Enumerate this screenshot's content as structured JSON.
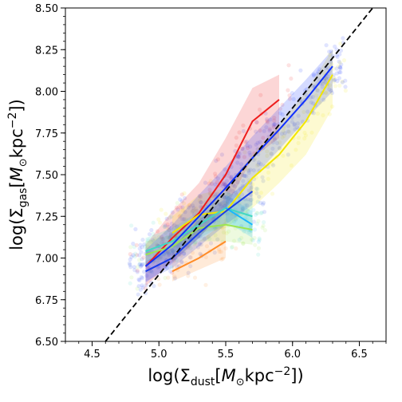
{
  "chart_data": {
    "type": "scatter",
    "title": "",
    "xlabel": {
      "pre": "log(Σ",
      "sub": "dust",
      "mid": "[",
      "unit": "M",
      "unit_sub": "⊙",
      "unit_rest": "kpc",
      "sup": "−2",
      "post": "])"
    },
    "ylabel": {
      "pre": "log(Σ",
      "sub": "gas",
      "mid": "[",
      "unit": "M",
      "unit_sub": "⊙",
      "unit_rest": "kpc",
      "sup": "−2",
      "post": "])"
    },
    "xlim": [
      4.3,
      6.7
    ],
    "ylim": [
      6.5,
      8.5
    ],
    "xticks": [
      4.5,
      5.0,
      5.5,
      6.0,
      6.5
    ],
    "xtick_labels": [
      "4.5",
      "5.0",
      "5.5",
      "6.0",
      "6.5"
    ],
    "yticks": [
      6.5,
      6.75,
      7.0,
      7.25,
      7.5,
      7.75,
      8.0,
      8.25,
      8.5
    ],
    "ytick_labels": [
      "6.50",
      "6.75",
      "7.00",
      "7.25",
      "7.50",
      "7.75",
      "8.00",
      "8.25",
      "8.50"
    ],
    "grid": false,
    "legend": "none",
    "reference_line": {
      "style": "dashed",
      "color": "#000000",
      "x": [
        4.6,
        6.7
      ],
      "y": [
        6.5,
        8.6
      ]
    },
    "series": [
      {
        "color": "#ee1c1c",
        "x": [
          4.9,
          5.1,
          5.3,
          5.5,
          5.7,
          5.9
        ],
        "y": [
          6.95,
          7.12,
          7.27,
          7.5,
          7.82,
          7.95
        ],
        "band_lo": [
          6.83,
          6.98,
          7.12,
          7.3,
          7.6,
          7.72
        ],
        "band_hi": [
          7.08,
          7.28,
          7.45,
          7.72,
          8.02,
          8.1
        ]
      },
      {
        "color": "#ff8c28",
        "x": [
          5.1,
          5.3,
          5.5
        ],
        "y": [
          6.92,
          7.0,
          7.1
        ],
        "band_lo": [
          6.86,
          6.93,
          7.0
        ],
        "band_hi": [
          7.0,
          7.1,
          7.22
        ]
      },
      {
        "color": "#f2e600",
        "x": [
          5.1,
          5.3,
          5.5,
          5.7,
          5.9,
          6.1,
          6.3
        ],
        "y": [
          7.15,
          7.26,
          7.28,
          7.48,
          7.62,
          7.82,
          8.1
        ],
        "band_lo": [
          7.05,
          7.15,
          7.18,
          7.3,
          7.45,
          7.62,
          7.9
        ],
        "band_hi": [
          7.25,
          7.38,
          7.42,
          7.62,
          7.8,
          8.0,
          8.25
        ]
      },
      {
        "color": "#9de64f",
        "x": [
          4.9,
          5.1,
          5.3,
          5.5,
          5.7
        ],
        "y": [
          7.02,
          7.07,
          7.18,
          7.2,
          7.17
        ],
        "band_lo": [
          6.96,
          7.0,
          7.1,
          7.1,
          7.08
        ],
        "band_hi": [
          7.1,
          7.14,
          7.26,
          7.3,
          7.26
        ]
      },
      {
        "color": "#3fd8c4",
        "x": [
          4.9,
          5.1,
          5.3,
          5.5,
          5.7
        ],
        "y": [
          7.04,
          7.1,
          7.2,
          7.3,
          7.25
        ],
        "band_lo": [
          6.98,
          7.03,
          7.12,
          7.2,
          7.15
        ],
        "band_hi": [
          7.12,
          7.18,
          7.28,
          7.4,
          7.34
        ]
      },
      {
        "color": "#18b6ff",
        "x": [
          5.5,
          5.7
        ],
        "y": [
          7.3,
          7.2
        ],
        "band_lo": [
          7.22,
          7.12
        ],
        "band_hi": [
          7.38,
          7.28
        ]
      },
      {
        "color": "#1a3ce8",
        "x": [
          4.9,
          5.1,
          5.3,
          5.5,
          5.7
        ],
        "y": [
          6.92,
          7.0,
          7.15,
          7.28,
          7.4
        ],
        "band_lo": [
          6.86,
          6.94,
          7.07,
          7.2,
          7.32
        ],
        "band_hi": [
          6.98,
          7.06,
          7.23,
          7.36,
          7.48
        ]
      },
      {
        "color": "#1030ff",
        "x": [
          4.9,
          5.1,
          5.3,
          5.5,
          5.7,
          5.9,
          6.1,
          6.3
        ],
        "y": [
          6.95,
          7.08,
          7.25,
          7.42,
          7.6,
          7.77,
          7.95,
          8.15
        ],
        "band_lo": [
          6.85,
          6.97,
          7.12,
          7.3,
          7.48,
          7.65,
          7.83,
          8.0
        ],
        "band_hi": [
          7.05,
          7.2,
          7.38,
          7.55,
          7.73,
          7.9,
          8.07,
          8.25
        ]
      }
    ]
  }
}
